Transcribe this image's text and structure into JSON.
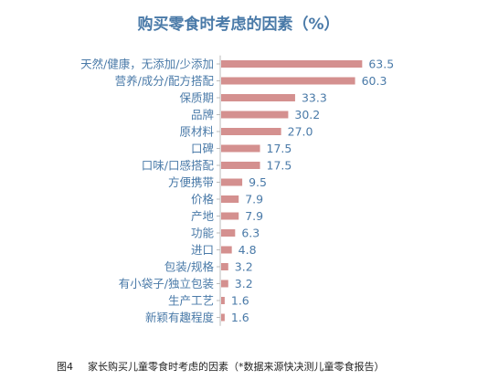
{
  "chart_data": {
    "type": "bar",
    "orientation": "horizontal",
    "title": "购买零食时考虑的因素（%）",
    "categories": [
      "天然/健康，无添加/少添加",
      "营养/成分/配方搭配",
      "保质期",
      "品牌",
      "原材料",
      "口碑",
      "口味/口感搭配",
      "方便携带",
      "价格",
      "产地",
      "功能",
      "进口",
      "包装/规格",
      "有小袋子/独立包装",
      "生产工艺",
      "新颖有趣程度"
    ],
    "values": [
      63.5,
      60.3,
      33.3,
      30.2,
      27.0,
      17.5,
      17.5,
      9.5,
      7.9,
      7.9,
      6.3,
      4.8,
      3.2,
      3.2,
      1.6,
      1.6
    ],
    "value_labels": [
      "63.5",
      "60.3",
      "33.3",
      "30.2",
      "27.0",
      "17.5",
      "17.5",
      "9.5",
      "7.9",
      "7.9",
      "6.3",
      "4.8",
      "3.2",
      "3.2",
      "1.6",
      "1.6"
    ],
    "xlim": [
      0,
      65
    ],
    "grid": false,
    "bar_color": "#d4908f",
    "axis_color": "#bbbbbb",
    "title_color": "#4a7aa8",
    "label_color": "#4a7aa8",
    "value_color": "#4a7aa8"
  },
  "caption": {
    "figure_number": "图4",
    "text": "家长购买儿童零食时考虑的因素（*数据来源快决测儿童零食报告）"
  }
}
